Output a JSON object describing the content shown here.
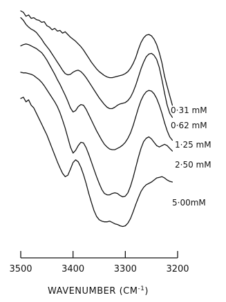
{
  "chart_data": {
    "type": "line",
    "xlabel": "WAVENUMBER (CM",
    "xlabel_sup": "-1",
    "xlabel_close": ")",
    "xlim": [
      3500,
      3200
    ],
    "x_reversed": true,
    "x_ticks": [
      3500,
      3400,
      3300,
      3200
    ],
    "x_tick_labels": [
      "3500",
      "3400",
      "3300",
      "3200"
    ],
    "grid": false,
    "series": [
      {
        "name": "0·31 mM",
        "points": [
          [
            3500,
            8
          ],
          [
            3495,
            10
          ],
          [
            3490,
            16
          ],
          [
            3485,
            14
          ],
          [
            3480,
            19
          ],
          [
            3475,
            18
          ],
          [
            3470,
            21
          ],
          [
            3465,
            22
          ],
          [
            3460,
            25
          ],
          [
            3455,
            24
          ],
          [
            3450,
            30
          ],
          [
            3445,
            32
          ],
          [
            3440,
            36
          ],
          [
            3435,
            34
          ],
          [
            3430,
            38
          ],
          [
            3425,
            37
          ],
          [
            3420,
            41
          ],
          [
            3415,
            39
          ],
          [
            3410,
            43
          ],
          [
            3405,
            47
          ],
          [
            3400,
            50
          ],
          [
            3395,
            53
          ],
          [
            3390,
            57
          ],
          [
            3385,
            61
          ],
          [
            3380,
            66
          ],
          [
            3375,
            72
          ],
          [
            3370,
            78
          ],
          [
            3365,
            84
          ],
          [
            3360,
            89
          ],
          [
            3355,
            94
          ],
          [
            3350,
            98
          ],
          [
            3345,
            101
          ],
          [
            3340,
            104
          ],
          [
            3335,
            106
          ],
          [
            3330,
            107
          ],
          [
            3325,
            107
          ],
          [
            3320,
            106
          ],
          [
            3315,
            105
          ],
          [
            3310,
            104
          ],
          [
            3305,
            103
          ],
          [
            3300,
            101
          ],
          [
            3295,
            98
          ],
          [
            3290,
            93
          ],
          [
            3285,
            86
          ],
          [
            3280,
            77
          ],
          [
            3275,
            65
          ],
          [
            3270,
            55
          ],
          [
            3265,
            48
          ],
          [
            3260,
            44
          ],
          [
            3255,
            43
          ],
          [
            3250,
            45
          ],
          [
            3245,
            50
          ],
          [
            3240,
            58
          ],
          [
            3235,
            70
          ],
          [
            3230,
            85
          ],
          [
            3225,
            105
          ],
          [
            3220,
            120
          ],
          [
            3215,
            134
          ],
          [
            3210,
            148
          ]
        ]
      },
      {
        "name": "0·62 mM",
        "points": [
          [
            3500,
            18
          ],
          [
            3495,
            22
          ],
          [
            3490,
            28
          ],
          [
            3485,
            32
          ],
          [
            3480,
            35
          ],
          [
            3475,
            37
          ],
          [
            3470,
            40
          ],
          [
            3465,
            45
          ],
          [
            3460,
            50
          ],
          [
            3455,
            56
          ],
          [
            3450,
            61
          ],
          [
            3445,
            66
          ],
          [
            3440,
            72
          ],
          [
            3435,
            78
          ],
          [
            3430,
            84
          ],
          [
            3425,
            90
          ],
          [
            3420,
            96
          ],
          [
            3415,
            101
          ],
          [
            3410,
            103
          ],
          [
            3405,
            102
          ],
          [
            3400,
            99
          ],
          [
            3395,
            97
          ],
          [
            3390,
            96
          ],
          [
            3385,
            98
          ],
          [
            3380,
            102
          ],
          [
            3375,
            107
          ],
          [
            3370,
            113
          ],
          [
            3365,
            119
          ],
          [
            3360,
            125
          ],
          [
            3355,
            131
          ],
          [
            3350,
            137
          ],
          [
            3345,
            142
          ],
          [
            3340,
            147
          ],
          [
            3335,
            151
          ],
          [
            3330,
            153
          ],
          [
            3325,
            153
          ],
          [
            3320,
            151
          ],
          [
            3315,
            148
          ],
          [
            3310,
            146
          ],
          [
            3305,
            145
          ],
          [
            3300,
            144
          ],
          [
            3295,
            141
          ],
          [
            3290,
            136
          ],
          [
            3285,
            128
          ],
          [
            3280,
            118
          ],
          [
            3275,
            106
          ],
          [
            3270,
            94
          ],
          [
            3265,
            84
          ],
          [
            3260,
            76
          ],
          [
            3255,
            72
          ],
          [
            3250,
            71
          ],
          [
            3245,
            74
          ],
          [
            3240,
            80
          ],
          [
            3235,
            92
          ],
          [
            3230,
            110
          ],
          [
            3225,
            130
          ],
          [
            3220,
            148
          ],
          [
            3215,
            160
          ],
          [
            3210,
            166
          ]
        ]
      },
      {
        "name": "1·25 mM",
        "points": [
          [
            3500,
            60
          ],
          [
            3495,
            58
          ],
          [
            3490,
            57
          ],
          [
            3485,
            58
          ],
          [
            3480,
            60
          ],
          [
            3475,
            62
          ],
          [
            3470,
            64
          ],
          [
            3465,
            67
          ],
          [
            3460,
            70
          ],
          [
            3455,
            75
          ],
          [
            3450,
            81
          ],
          [
            3445,
            88
          ],
          [
            3440,
            95
          ],
          [
            3435,
            102
          ],
          [
            3430,
            110
          ],
          [
            3425,
            117
          ],
          [
            3420,
            125
          ],
          [
            3415,
            133
          ],
          [
            3410,
            142
          ],
          [
            3405,
            152
          ],
          [
            3400,
            158
          ],
          [
            3395,
            156
          ],
          [
            3390,
            150
          ],
          [
            3385,
            147
          ],
          [
            3380,
            148
          ],
          [
            3375,
            154
          ],
          [
            3370,
            162
          ],
          [
            3365,
            170
          ],
          [
            3360,
            178
          ],
          [
            3355,
            186
          ],
          [
            3350,
            193
          ],
          [
            3345,
            200
          ],
          [
            3340,
            206
          ],
          [
            3335,
            210
          ],
          [
            3330,
            213
          ],
          [
            3325,
            214
          ],
          [
            3320,
            214
          ],
          [
            3315,
            212
          ],
          [
            3310,
            210
          ],
          [
            3305,
            207
          ],
          [
            3300,
            203
          ],
          [
            3295,
            197
          ],
          [
            3290,
            189
          ],
          [
            3285,
            178
          ],
          [
            3280,
            165
          ],
          [
            3275,
            152
          ],
          [
            3270,
            141
          ],
          [
            3265,
            133
          ],
          [
            3260,
            128
          ],
          [
            3255,
            126
          ],
          [
            3250,
            127
          ],
          [
            3245,
            131
          ],
          [
            3240,
            138
          ],
          [
            3235,
            148
          ],
          [
            3230,
            160
          ],
          [
            3225,
            174
          ],
          [
            3220,
            186
          ],
          [
            3215,
            195
          ],
          [
            3210,
            200
          ]
        ]
      },
      {
        "name": "2·50 mM",
        "points": [
          [
            3500,
            99
          ],
          [
            3495,
            100
          ],
          [
            3490,
            100
          ],
          [
            3485,
            101
          ],
          [
            3480,
            102
          ],
          [
            3475,
            104
          ],
          [
            3470,
            107
          ],
          [
            3465,
            110
          ],
          [
            3460,
            114
          ],
          [
            3455,
            119
          ],
          [
            3450,
            125
          ],
          [
            3445,
            131
          ],
          [
            3440,
            137
          ],
          [
            3435,
            143
          ],
          [
            3430,
            150
          ],
          [
            3425,
            159
          ],
          [
            3420,
            170
          ],
          [
            3415,
            182
          ],
          [
            3410,
            196
          ],
          [
            3405,
            210
          ],
          [
            3400,
            219
          ],
          [
            3395,
            215
          ],
          [
            3390,
            208
          ],
          [
            3385,
            203
          ],
          [
            3380,
            204
          ],
          [
            3375,
            211
          ],
          [
            3370,
            221
          ],
          [
            3365,
            232
          ],
          [
            3360,
            243
          ],
          [
            3355,
            254
          ],
          [
            3350,
            264
          ],
          [
            3345,
            273
          ],
          [
            3340,
            279
          ],
          [
            3335,
            281
          ],
          [
            3330,
            281
          ],
          [
            3325,
            279
          ],
          [
            3320,
            278
          ],
          [
            3315,
            279
          ],
          [
            3310,
            282
          ],
          [
            3305,
            284
          ],
          [
            3300,
            283
          ],
          [
            3295,
            278
          ],
          [
            3290,
            268
          ],
          [
            3285,
            255
          ],
          [
            3280,
            240
          ],
          [
            3275,
            225
          ],
          [
            3270,
            212
          ],
          [
            3265,
            202
          ],
          [
            3260,
            197
          ],
          [
            3255,
            195
          ],
          [
            3250,
            198
          ],
          [
            3245,
            203
          ],
          [
            3240,
            208
          ],
          [
            3235,
            210
          ],
          [
            3230,
            208
          ],
          [
            3225,
            206
          ],
          [
            3220,
            208
          ],
          [
            3215,
            212
          ],
          [
            3210,
            216
          ]
        ]
      },
      {
        "name": "5·00mM",
        "points": [
          [
            3500,
            138
          ],
          [
            3495,
            136
          ],
          [
            3490,
            143
          ],
          [
            3485,
            140
          ],
          [
            3480,
            148
          ],
          [
            3475,
            152
          ],
          [
            3470,
            160
          ],
          [
            3465,
            168
          ],
          [
            3460,
            176
          ],
          [
            3455,
            184
          ],
          [
            3450,
            192
          ],
          [
            3445,
            202
          ],
          [
            3440,
            212
          ],
          [
            3435,
            222
          ],
          [
            3430,
            232
          ],
          [
            3425,
            241
          ],
          [
            3420,
            249
          ],
          [
            3415,
            254
          ],
          [
            3410,
            252
          ],
          [
            3405,
            243
          ],
          [
            3400,
            233
          ],
          [
            3395,
            229
          ],
          [
            3390,
            232
          ],
          [
            3385,
            240
          ],
          [
            3380,
            251
          ],
          [
            3375,
            264
          ],
          [
            3370,
            279
          ],
          [
            3365,
            292
          ],
          [
            3360,
            304
          ],
          [
            3355,
            313
          ],
          [
            3350,
            318
          ],
          [
            3345,
            320
          ],
          [
            3340,
            321
          ],
          [
            3335,
            321
          ],
          [
            3330,
            320
          ],
          [
            3325,
            322
          ],
          [
            3320,
            324
          ],
          [
            3315,
            325
          ],
          [
            3310,
            327
          ],
          [
            3305,
            328
          ],
          [
            3300,
            327
          ],
          [
            3295,
            323
          ],
          [
            3290,
            316
          ],
          [
            3285,
            306
          ],
          [
            3280,
            295
          ],
          [
            3275,
            285
          ],
          [
            3270,
            276
          ],
          [
            3265,
            270
          ],
          [
            3260,
            266
          ],
          [
            3255,
            264
          ],
          [
            3250,
            262
          ],
          [
            3245,
            259
          ],
          [
            3240,
            256
          ],
          [
            3235,
            255
          ],
          [
            3230,
            254
          ],
          [
            3225,
            256
          ],
          [
            3220,
            259
          ],
          [
            3215,
            261
          ],
          [
            3210,
            262
          ]
        ]
      }
    ]
  }
}
